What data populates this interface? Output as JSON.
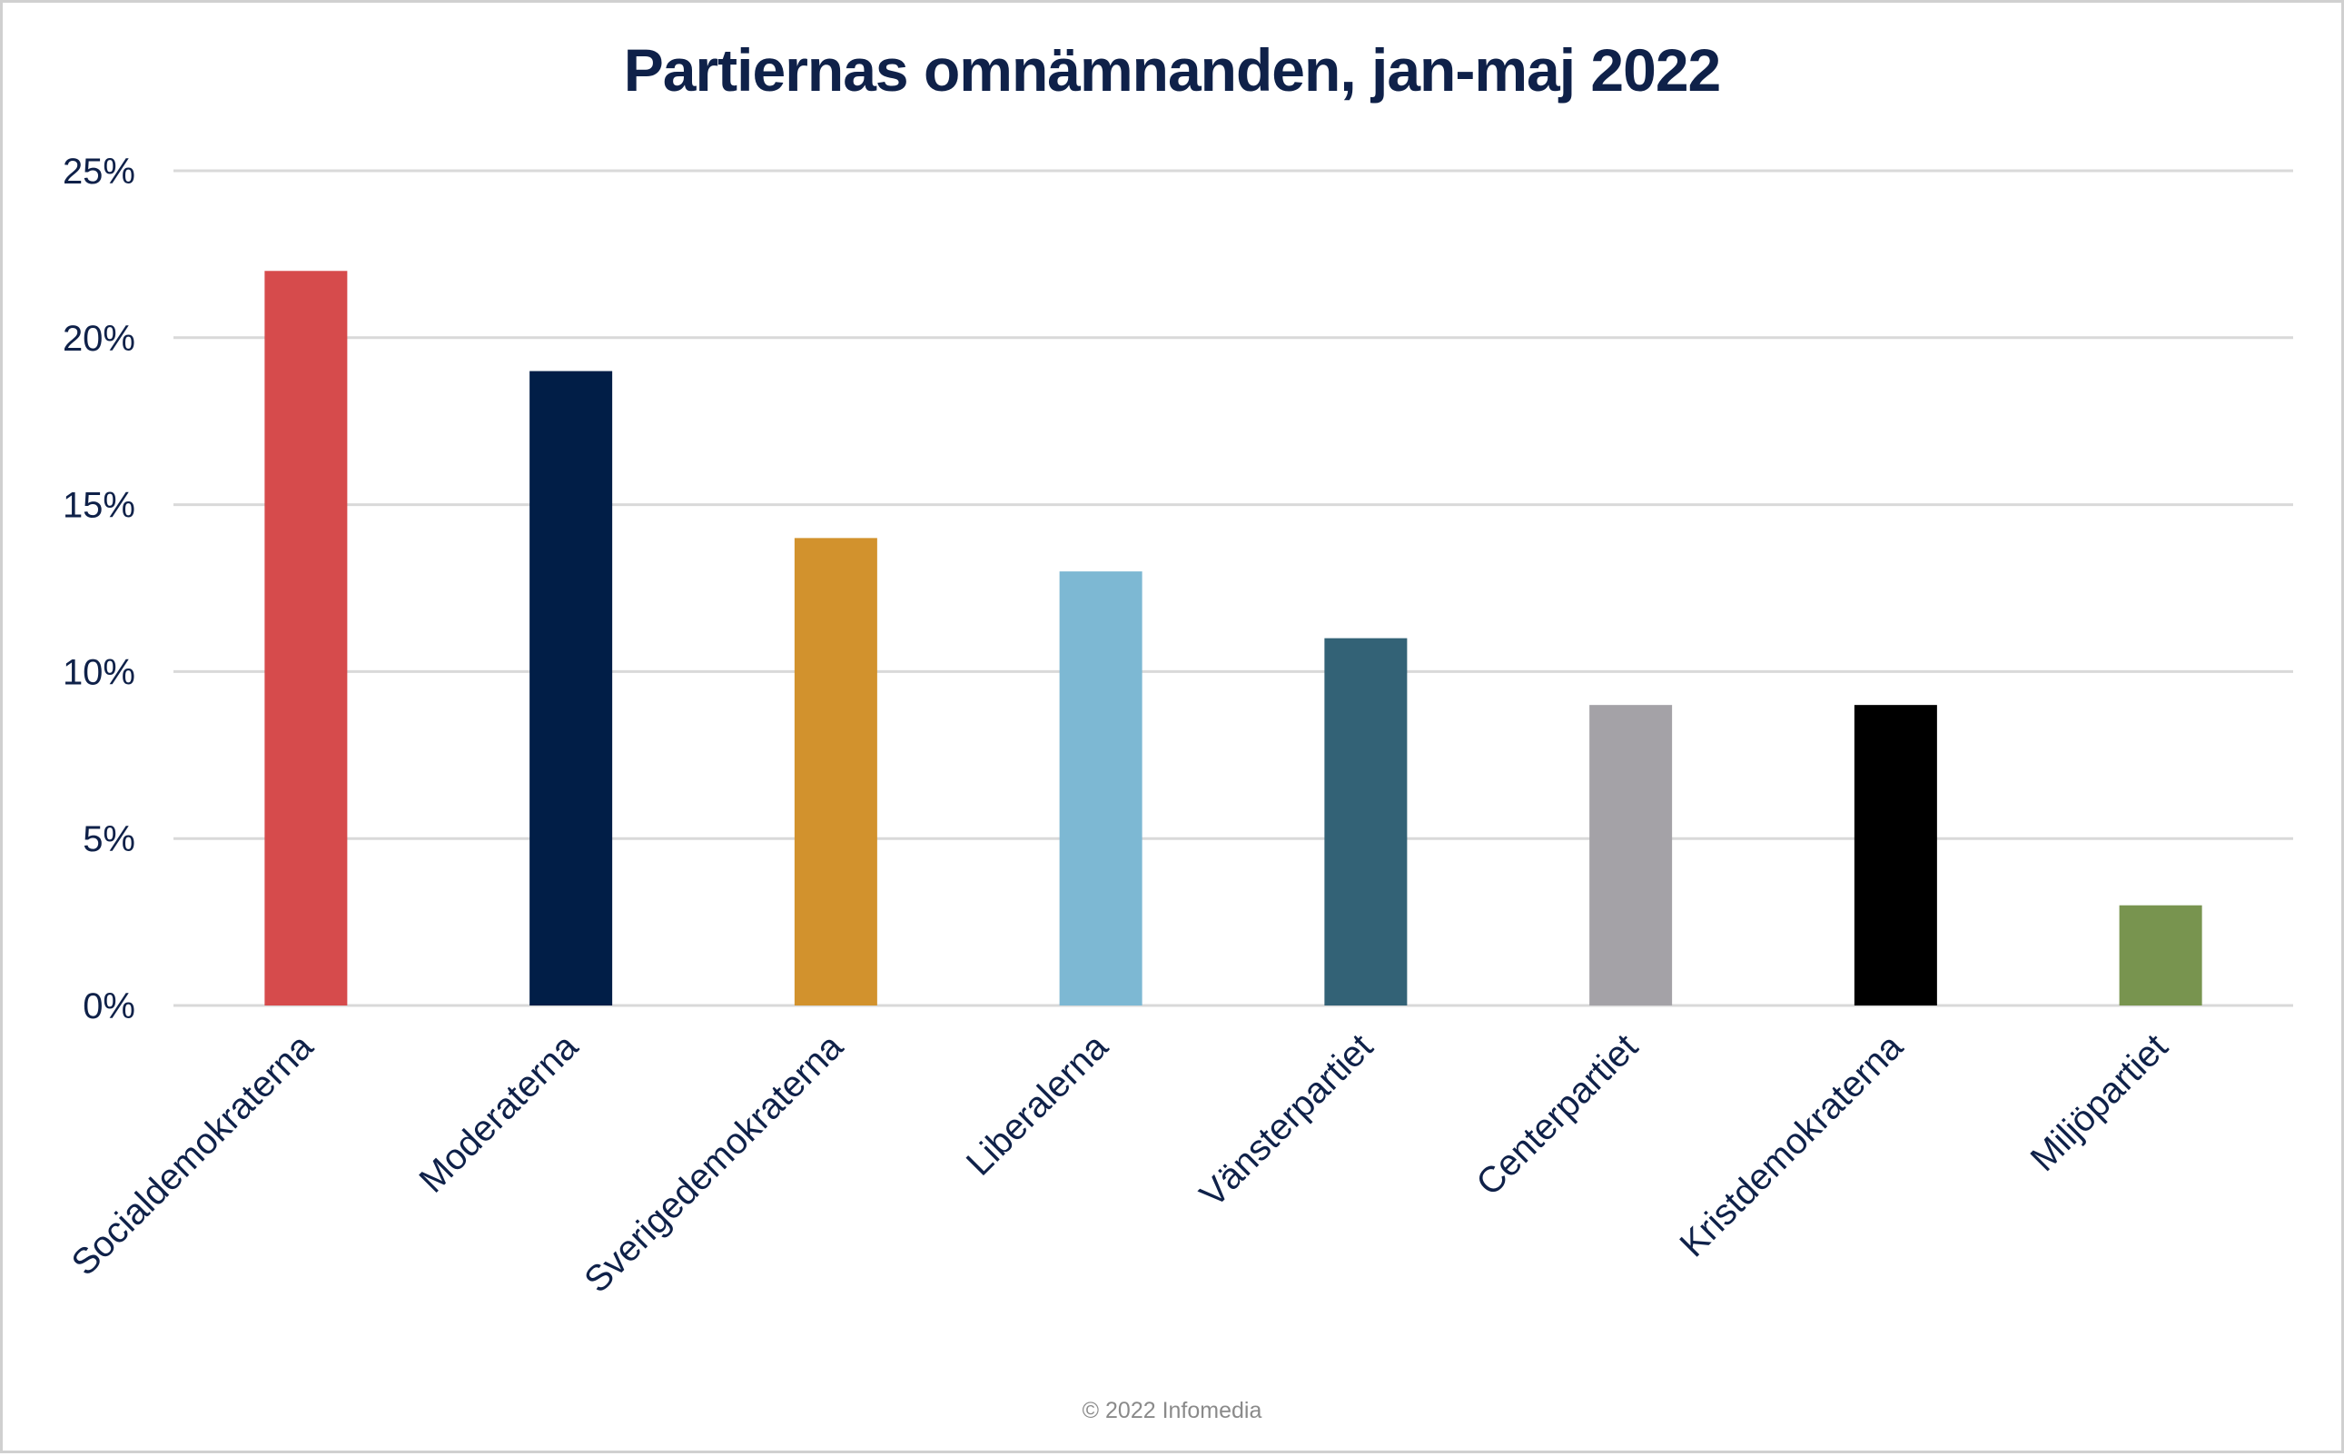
{
  "chart_data": {
    "type": "bar",
    "title": "Partiernas omnämnanden, jan-maj 2022",
    "xlabel": "",
    "ylabel": "",
    "categories": [
      "Socialdemokraterna",
      "Moderaterna",
      "Sverigedemokraterna",
      "Liberalerna",
      "Vänsterpartiet",
      "Centerpartiet",
      "Kristdemokraterna",
      "Miljöpartiet"
    ],
    "values": [
      22,
      19,
      14,
      13,
      11,
      9,
      9,
      3
    ],
    "colors": [
      "#d64b4c",
      "#011e47",
      "#d2922d",
      "#7db8d3",
      "#336276",
      "#a4a2a7",
      "#000000",
      "#78944f"
    ],
    "ylim": [
      0,
      25
    ],
    "yticks": [
      "0%",
      "5%",
      "10%",
      "15%",
      "20%",
      "25%"
    ],
    "grid": true,
    "legend": "none"
  },
  "footer": "© 2022 Infomedia"
}
